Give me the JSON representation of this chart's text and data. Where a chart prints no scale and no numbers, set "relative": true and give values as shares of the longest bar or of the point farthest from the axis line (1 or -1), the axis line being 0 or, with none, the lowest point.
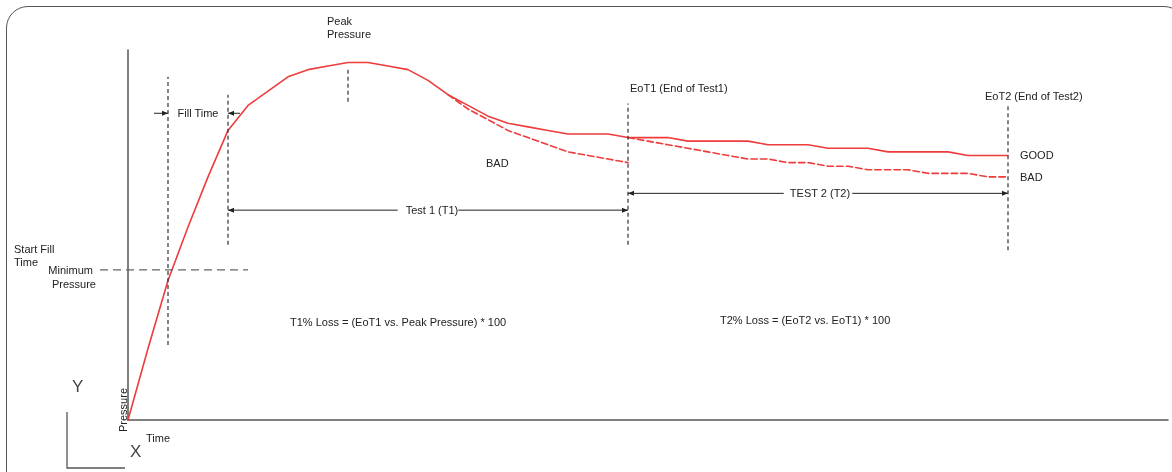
{
  "chart_data": {
    "type": "line",
    "relative": true,
    "grid": false,
    "legend": false,
    "marker": "none",
    "xlabel": "Time",
    "ylabel": "Pressure",
    "categories": [
      null,
      null,
      null,
      null,
      null,
      null,
      null,
      null,
      null,
      null,
      null,
      null,
      null,
      null,
      null,
      null,
      null,
      null,
      null,
      null,
      null,
      null,
      null,
      null,
      null,
      null,
      null,
      null,
      null,
      null,
      null,
      null,
      null,
      null,
      null,
      null,
      null,
      null,
      null,
      null,
      null,
      null,
      null,
      null,
      null,
      null,
      null,
      null,
      null,
      null,
      null,
      null,
      null
    ],
    "series": [
      {
        "name": "GOOD",
        "color": "#ee3b3b",
        "line_style": "solid",
        "values": [
          0,
          0.2,
          0.39,
          0.54,
          0.68,
          0.81,
          0.88,
          0.92,
          0.96,
          0.98,
          0.99,
          1,
          1,
          0.99,
          0.98,
          0.95,
          0.91,
          0.88,
          0.85,
          0.83,
          0.82,
          0.81,
          0.8,
          0.8,
          0.8,
          0.79,
          0.79,
          0.79,
          0.78,
          0.78,
          0.78,
          0.78,
          0.77,
          0.77,
          0.77,
          0.76,
          0.76,
          0.76,
          0.75,
          0.75,
          0.75,
          0.75,
          0.74,
          0.74,
          0.74,
          null,
          null,
          null,
          null,
          null,
          null,
          null,
          null
        ]
      },
      {
        "name": "BAD",
        "color": "#ee3b3b",
        "line_style": "dashed",
        "values": [
          null,
          null,
          null,
          null,
          null,
          null,
          null,
          null,
          null,
          null,
          null,
          null,
          null,
          null,
          null,
          null,
          0.91,
          0.87,
          0.84,
          0.81,
          0.79,
          0.77,
          0.75,
          0.74,
          0.73,
          0.72,
          null,
          null,
          null,
          null,
          null,
          null,
          null,
          null,
          null,
          null,
          null,
          null,
          null,
          null,
          null,
          null,
          null,
          null,
          null,
          null,
          null,
          null,
          null,
          null,
          null,
          null,
          null
        ]
      },
      {
        "name": "BAD",
        "color": "#ee3b3b",
        "line_style": "dashed",
        "values": [
          null,
          null,
          null,
          null,
          null,
          null,
          null,
          null,
          null,
          null,
          null,
          null,
          null,
          null,
          null,
          null,
          null,
          null,
          null,
          null,
          null,
          null,
          null,
          null,
          null,
          0.79,
          0.78,
          0.77,
          0.76,
          0.75,
          0.74,
          0.73,
          0.73,
          0.72,
          0.72,
          0.71,
          0.71,
          0.7,
          0.7,
          0.7,
          0.69,
          0.69,
          0.69,
          0.68,
          0.68,
          null,
          null,
          null,
          null,
          null,
          null,
          null,
          null
        ]
      }
    ],
    "ref_lines": [
      {
        "axis": "y",
        "value": 0.42,
        "label": "Minimum Pressure",
        "line_style": "dashed",
        "color": "#666666"
      }
    ],
    "annotations": [
      "Peak Pressure",
      "Fill Time",
      "EoT1 (End of Test1)",
      "EoT2 (End of Test2)",
      "Test 1 (T1)",
      "TEST 2 (T2)",
      "Start Fill Time",
      "T1% Loss = (EoT1 vs. Peak Pressure) * 100",
      "T2% Loss = (EoT2 vs. EoT1) * 100",
      "Y",
      "X"
    ]
  }
}
